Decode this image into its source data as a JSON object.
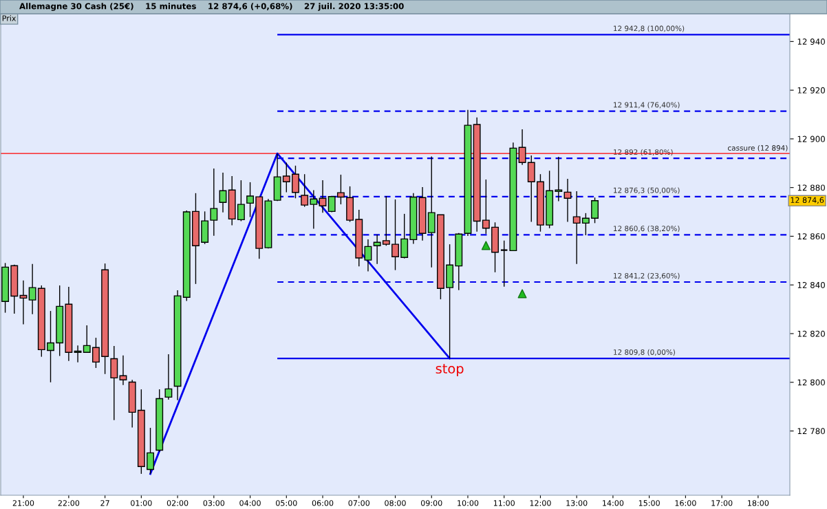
{
  "chart_data": {
    "type": "candlestick",
    "title": "Allemagne 30 Cash (25€)    15 minutes    12 874,6 (+0,68%)    27 juil. 2020 13:35:00",
    "categories": [
      null,
      null,
      "21:00",
      null,
      null,
      null,
      null,
      "22:00",
      null,
      null,
      null,
      "27",
      null,
      null,
      null,
      "01:00",
      null,
      null,
      null,
      "02:00",
      null,
      null,
      null,
      "03:00",
      null,
      null,
      null,
      "04:00",
      null,
      null,
      null,
      "05:00",
      null,
      null,
      null,
      "06:00",
      null,
      null,
      null,
      "07:00",
      null,
      null,
      null,
      "08:00",
      null,
      null,
      null,
      "09:00",
      null,
      null,
      null,
      "10:00",
      null,
      null,
      null,
      "11:00",
      null,
      null,
      null,
      "12:00",
      null,
      null,
      null,
      "13:00",
      null,
      null,
      null,
      "14:00",
      null,
      null,
      null,
      "15:00",
      null,
      null,
      null,
      "16:00",
      null,
      null,
      null,
      "17:00",
      null,
      null,
      null,
      "18:00",
      null,
      null,
      null
    ],
    "series": [
      {
        "type": "candlestick",
        "colors": [
          "#55d955",
          "#e86b6b",
          "#e86b6b",
          "#55d955",
          "#e86b6b",
          "#55d955",
          "#55d955",
          "#e86b6b",
          "#55d955",
          "#55d955",
          "#e86b6b",
          "#e86b6b",
          "#e86b6b",
          "#e86b6b",
          "#e86b6b",
          "#e86b6b",
          "#55d955",
          "#55d955",
          "#55d955",
          "#55d955",
          "#55d955",
          "#e86b6b",
          "#55d955",
          "#55d955",
          "#55d955",
          "#e86b6b",
          "#55d955",
          "#55d955",
          "#e86b6b",
          "#55d955",
          "#55d955",
          "#e86b6b",
          "#e86b6b",
          "#e86b6b",
          "#55d955",
          "#e86b6b",
          "#55d955",
          "#e86b6b",
          "#e86b6b",
          "#e86b6b",
          "#55d955",
          "#55d955",
          "#e86b6b",
          "#e86b6b",
          "#55d955",
          "#55d955",
          "#e86b6b",
          "#55d955",
          "#e86b6b",
          "#55d955",
          "#55d955",
          "#55d955",
          "#e86b6b",
          "#e86b6b",
          "#e86b6b",
          "#000000",
          "#55d955",
          "#e86b6b",
          "#e86b6b",
          "#e86b6b",
          "#55d955",
          "#55d955",
          "#e86b6b",
          "#e86b6b",
          "#55d955",
          "#55d955",
          null,
          null,
          null,
          null,
          null,
          null,
          null,
          null,
          null,
          null,
          null,
          null,
          null,
          null,
          null,
          null,
          null,
          null,
          null,
          null,
          null
        ],
        "ohlc": [
          [
            12833.2,
            12849.0,
            12828.6,
            12847.3
          ],
          [
            12847.9,
            12848.3,
            12828.2,
            12835.4
          ],
          [
            12835.7,
            12841.8,
            12823.8,
            12834.6
          ],
          [
            12833.8,
            12848.6,
            12828.0,
            12838.9
          ],
          [
            12838.6,
            12839.8,
            12810.5,
            12813.4
          ],
          [
            12813.1,
            12829.3,
            12800.0,
            12816.2
          ],
          [
            12816.2,
            12839.8,
            12810.8,
            12831.2
          ],
          [
            12832.1,
            12839.2,
            12808.8,
            12812.3
          ],
          [
            12812.3,
            12815.1,
            12808.2,
            12812.8
          ],
          [
            12812.3,
            12823.4,
            12812.3,
            12815.1
          ],
          [
            12814.3,
            12818.3,
            12805.9,
            12808.3
          ],
          [
            12846.2,
            12848.8,
            12803.4,
            12810.6
          ],
          [
            12809.7,
            12814.9,
            12784.5,
            12801.8
          ],
          [
            12802.7,
            12811.0,
            12798.9,
            12801.0
          ],
          [
            12800.1,
            12801.0,
            12781.4,
            12787.7
          ],
          [
            12788.5,
            12797.1,
            12762.4,
            12765.4
          ],
          [
            12764.2,
            12781.3,
            12762.4,
            12771.0
          ],
          [
            12772.1,
            12797.1,
            12771.5,
            12793.3
          ],
          [
            12793.9,
            12811.5,
            12792.9,
            12797.3
          ],
          [
            12798.4,
            12837.8,
            12792.7,
            12835.5
          ],
          [
            12834.9,
            12870.6,
            12833.4,
            12870.0
          ],
          [
            12870.2,
            12877.7,
            12840.4,
            12856.1
          ],
          [
            12857.5,
            12870.2,
            12856.8,
            12866.3
          ],
          [
            12866.6,
            12887.8,
            12860.2,
            12871.4
          ],
          [
            12873.9,
            12886.1,
            12869.8,
            12878.7
          ],
          [
            12879.0,
            12884.7,
            12864.5,
            12867.1
          ],
          [
            12866.8,
            12883.0,
            12866.2,
            12873.1
          ],
          [
            12873.6,
            12882.2,
            12867.9,
            12876.5
          ],
          [
            12876.2,
            12876.2,
            12850.7,
            12855.0
          ],
          [
            12855.3,
            12875.3,
            12855.0,
            12874.5
          ],
          [
            12874.8,
            12894.0,
            12874.5,
            12884.4
          ],
          [
            12884.7,
            12890.2,
            12878.1,
            12882.4
          ],
          [
            12885.5,
            12889.0,
            12875.6,
            12878.0
          ],
          [
            12876.8,
            12885.5,
            12872.1,
            12872.8
          ],
          [
            12873.1,
            12878.9,
            12863.1,
            12875.3
          ],
          [
            12875.6,
            12883.0,
            12869.7,
            12872.5
          ],
          [
            12870.2,
            12876.3,
            12869.9,
            12876.3
          ],
          [
            12877.9,
            12885.3,
            12873.1,
            12876.1
          ],
          [
            12875.9,
            12880.5,
            12865.9,
            12866.6
          ],
          [
            12866.9,
            12870.9,
            12847.6,
            12851.1
          ],
          [
            12850.2,
            12858.7,
            12845.6,
            12855.8
          ],
          [
            12856.1,
            12860.7,
            12848.6,
            12857.5
          ],
          [
            12858.2,
            12876.5,
            12856.1,
            12856.7
          ],
          [
            12856.7,
            12875.1,
            12846.1,
            12851.6
          ],
          [
            12851.3,
            12869.2,
            12850.9,
            12858.9
          ],
          [
            12858.6,
            12877.7,
            12856.9,
            12876.1
          ],
          [
            12875.9,
            12880.2,
            12858.2,
            12861.2
          ],
          [
            12861.5,
            12892.8,
            12847.2,
            12869.7
          ],
          [
            12868.8,
            12868.8,
            12834.1,
            12838.6
          ],
          [
            12838.9,
            12856.7,
            12809.8,
            12848.2
          ],
          [
            12847.8,
            12861.3,
            12837.9,
            12860.9
          ],
          [
            12861.2,
            12911.9,
            12860.1,
            12905.6
          ],
          [
            12905.9,
            12908.8,
            12861.9,
            12866.2
          ],
          [
            12866.6,
            12883.3,
            12861.0,
            12863.3
          ],
          [
            12863.7,
            12865.7,
            12845.2,
            12853.4
          ],
          [
            12854.3,
            12858.2,
            12839.3,
            12854.3
          ],
          [
            12854.1,
            12898.5,
            12854.1,
            12896.2
          ],
          [
            12896.5,
            12903.9,
            12889.3,
            12890.3
          ],
          [
            12890.3,
            12893.2,
            12865.9,
            12882.4
          ],
          [
            12882.4,
            12885.5,
            12861.9,
            12864.6
          ],
          [
            12864.6,
            12886.9,
            12863.3,
            12878.7
          ],
          [
            12878.4,
            12892.6,
            12874.4,
            12879.0
          ],
          [
            12878.1,
            12883.6,
            12865.9,
            12875.6
          ],
          [
            12868.0,
            12878.5,
            12848.6,
            12865.4
          ],
          [
            12865.4,
            12869.5,
            12860.4,
            12867.4
          ],
          [
            12867.4,
            12875.9,
            12865.4,
            12874.6
          ],
          null,
          null,
          null,
          null,
          null,
          null,
          null,
          null,
          null,
          null,
          null,
          null,
          null,
          null,
          null,
          null,
          null,
          null,
          null,
          null,
          null
        ]
      },
      {
        "type": "line",
        "color": "#0000ee",
        "values": [
          null,
          null,
          null,
          null,
          null,
          null,
          null,
          null,
          null,
          null,
          null,
          null,
          null,
          null,
          null,
          null,
          12762.4,
          null,
          null,
          null,
          null,
          null,
          null,
          null,
          null,
          null,
          null,
          null,
          null,
          null,
          12894.0,
          null,
          null,
          null,
          null,
          null,
          null,
          null,
          null,
          null,
          null,
          null,
          null,
          null,
          null,
          null,
          null,
          null,
          null,
          12809.8,
          null,
          null,
          null,
          null,
          null,
          null,
          null,
          null,
          null,
          null,
          null,
          null,
          null,
          null,
          null,
          null,
          null,
          null,
          null,
          null,
          null,
          null,
          null,
          null,
          null,
          null,
          null,
          null,
          null,
          null,
          null,
          null,
          null,
          null,
          null,
          null,
          null
        ]
      },
      {
        "type": "scatter",
        "color": "#22bb22",
        "marker": "triangle",
        "values": [
          null,
          null,
          null,
          null,
          null,
          null,
          null,
          null,
          null,
          null,
          null,
          null,
          null,
          null,
          null,
          null,
          null,
          null,
          null,
          null,
          null,
          null,
          null,
          null,
          null,
          null,
          null,
          null,
          null,
          null,
          null,
          null,
          null,
          null,
          null,
          null,
          null,
          null,
          null,
          null,
          null,
          null,
          null,
          null,
          null,
          null,
          null,
          null,
          null,
          null,
          null,
          null,
          null,
          12856.2,
          null,
          null,
          null,
          12836.4,
          null,
          null,
          null,
          null,
          null,
          null,
          null,
          null,
          null,
          null,
          null,
          null,
          null,
          null,
          null,
          null,
          null,
          null,
          null,
          null,
          null,
          null,
          null,
          null,
          null,
          null,
          null,
          null,
          null
        ]
      }
    ],
    "ylim": [
      12753.6,
      12951.4
    ],
    "yticks": [
      {
        "value": 12780,
        "label": "12 780"
      },
      {
        "value": 12800,
        "label": "12 800"
      },
      {
        "value": 12820,
        "label": "12 820"
      },
      {
        "value": 12840,
        "label": "12 840"
      },
      {
        "value": 12860,
        "label": "12 860"
      },
      {
        "value": 12880,
        "label": "12 880"
      },
      {
        "value": 12900,
        "label": "12 900"
      },
      {
        "value": 12920,
        "label": "12 920"
      },
      {
        "value": 12940,
        "label": "12 940"
      }
    ],
    "ref_lines": [
      {
        "axis": "y",
        "value": 12942.8,
        "label": "12 942,8 (100,00%)",
        "color": "#0000ee",
        "line_style": "solid"
      },
      {
        "axis": "y",
        "value": 12911.4,
        "label": "12 911,4 (76,40%)",
        "color": "#0000ee",
        "line_style": "dashed"
      },
      {
        "axis": "y",
        "value": 12892,
        "label": "12 892 (61,80%)",
        "color": "#0000ee",
        "line_style": "dashed"
      },
      {
        "axis": "y",
        "value": 12876.3,
        "label": "12 876,3 (50,00%)",
        "color": "#0000ee",
        "line_style": "dashed"
      },
      {
        "axis": "y",
        "value": 12860.6,
        "label": "12 860,6 (38,20%)",
        "color": "#0000ee",
        "line_style": "dashed"
      },
      {
        "axis": "y",
        "value": 12841.2,
        "label": "12 841,2 (23,60%)",
        "color": "#0000ee",
        "line_style": "dashed"
      },
      {
        "axis": "y",
        "value": 12809.8,
        "label": "12 809,8 (0,00%)",
        "color": "#0000ee",
        "line_style": "solid"
      },
      {
        "axis": "y",
        "value": 12894,
        "label": "cassure (12 894)",
        "color": "#ff0000",
        "line_style": "solid"
      }
    ],
    "annotations": [
      "Prix",
      "stop",
      "12 874,6"
    ],
    "grid": false,
    "legend": false
  }
}
